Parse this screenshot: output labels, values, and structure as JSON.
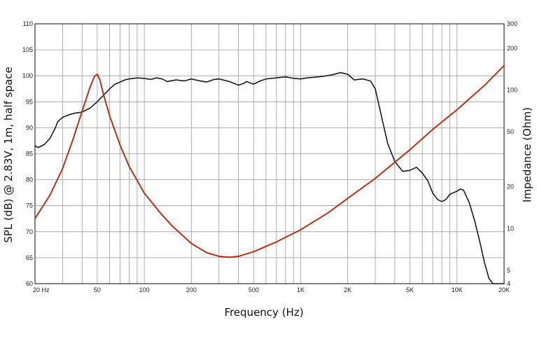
{
  "chart_data": {
    "type": "line",
    "title": "",
    "xlabel": "Frequency (Hz)",
    "ylabel_left": "SPL (dB) @ 2.83V, 1m, half space",
    "ylabel_right": "Impedance (Ohm)",
    "x_scale": "log",
    "xlim": [
      20,
      20000
    ],
    "ylim_left": [
      60,
      110
    ],
    "ylim_right": [
      4,
      300
    ],
    "y_right_scale": "log",
    "grid": true,
    "x_tick_labels": [
      {
        "value": 20,
        "label": "20  Hz"
      },
      {
        "value": 50,
        "label": "50"
      },
      {
        "value": 100,
        "label": "100"
      },
      {
        "value": 200,
        "label": "200"
      },
      {
        "value": 500,
        "label": "500"
      },
      {
        "value": 1000,
        "label": "1K"
      },
      {
        "value": 2000,
        "label": "2K"
      },
      {
        "value": 5000,
        "label": "5K"
      },
      {
        "value": 10000,
        "label": "10K"
      },
      {
        "value": 20000,
        "label": "20K"
      }
    ],
    "y_left_ticks": [
      60,
      65,
      70,
      75,
      80,
      85,
      90,
      95,
      100,
      105,
      110
    ],
    "y_right_ticks": [
      4,
      5,
      10,
      20,
      50,
      100,
      200,
      300
    ],
    "series": [
      {
        "axis": "left",
        "color": "#1a1a1a",
        "x": [
          20,
          21,
          23,
          25,
          27,
          28,
          30,
          33,
          36,
          40,
          45,
          50,
          55,
          60,
          65,
          70,
          75,
          80,
          90,
          100,
          110,
          120,
          130,
          140,
          160,
          180,
          200,
          220,
          250,
          280,
          300,
          350,
          400,
          430,
          450,
          500,
          550,
          600,
          700,
          800,
          900,
          1000,
          1100,
          1200,
          1400,
          1600,
          1800,
          2000,
          2200,
          2500,
          2800,
          3000,
          3300,
          3600,
          4000,
          4500,
          5000,
          5500,
          6000,
          6500,
          7000,
          7500,
          8000,
          8500,
          9000,
          10000,
          10500,
          11000,
          12000,
          13000,
          14000,
          15000,
          16000,
          17000,
          18000,
          20000
        ],
        "y": [
          86.5,
          86.2,
          86.8,
          88,
          90,
          91.2,
          92.0,
          92.5,
          92.8,
          93.0,
          93.8,
          95.0,
          96.3,
          97.5,
          98.4,
          98.8,
          99.2,
          99.4,
          99.6,
          99.5,
          99.3,
          99.6,
          99.4,
          98.9,
          99.2,
          99.0,
          99.4,
          99.1,
          98.8,
          99.3,
          99.4,
          98.9,
          98.2,
          98.5,
          98.9,
          98.4,
          99.0,
          99.4,
          99.6,
          99.8,
          99.5,
          99.4,
          99.6,
          99.7,
          99.9,
          100.2,
          100.6,
          100.3,
          99.2,
          99.4,
          99.0,
          97.5,
          92.0,
          87.0,
          83.5,
          81.6,
          81.8,
          82.4,
          81.3,
          79.8,
          77.4,
          76.2,
          75.8,
          76.2,
          77.2,
          77.8,
          78.2,
          78.0,
          75.5,
          72.0,
          68.0,
          64.0,
          61.0,
          60.0,
          60.0,
          60.0
        ]
      },
      {
        "axis": "right",
        "color": "#b5321f",
        "x": [
          20,
          25,
          30,
          35,
          40,
          45,
          48,
          50,
          52,
          55,
          60,
          70,
          80,
          100,
          130,
          150,
          200,
          250,
          300,
          350,
          400,
          500,
          700,
          1000,
          1500,
          2000,
          3000,
          5000,
          7000,
          10000,
          15000,
          20000
        ],
        "y": [
          11.8,
          17.5,
          27,
          44,
          70,
          105,
          125,
          130,
          118,
          92,
          65,
          40,
          28,
          18,
          12.5,
          10.5,
          7.8,
          6.7,
          6.3,
          6.2,
          6.3,
          6.8,
          8.0,
          9.8,
          13.0,
          16.5,
          23,
          37,
          52,
          72,
          108,
          150
        ]
      }
    ]
  }
}
